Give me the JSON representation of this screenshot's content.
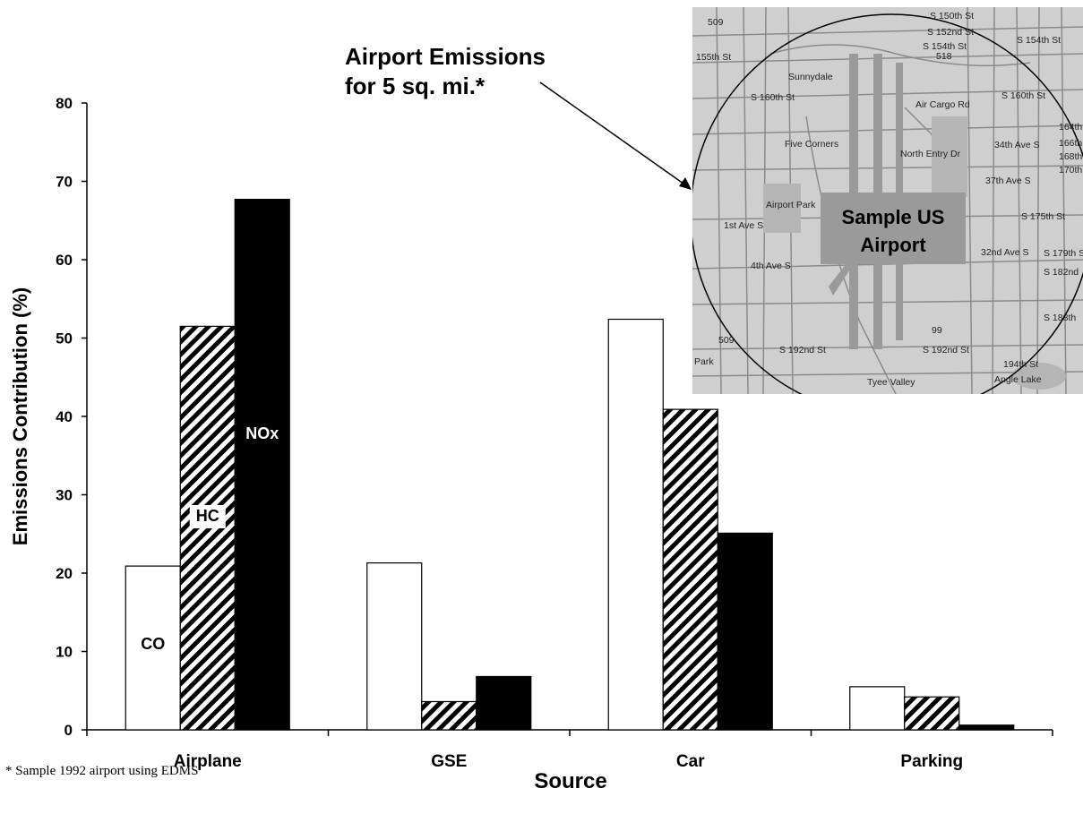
{
  "chart_data": {
    "type": "bar",
    "title": "",
    "xlabel": "Source",
    "ylabel": "Emissions Contribution (%)",
    "ylim": [
      0,
      80
    ],
    "yticks": [
      0,
      10,
      20,
      30,
      40,
      50,
      60,
      70,
      80
    ],
    "categories": [
      "Airplane",
      "GSE",
      "Car",
      "Parking"
    ],
    "series": [
      {
        "name": "CO",
        "values": [
          20.9,
          21.3,
          52.4,
          5.5
        ]
      },
      {
        "name": "HC",
        "values": [
          51.5,
          3.6,
          40.9,
          4.2
        ]
      },
      {
        "name": "NOx",
        "values": [
          67.7,
          6.8,
          25.1,
          0.6
        ]
      }
    ],
    "series_fills": [
      "white",
      "diagonal-hatch",
      "black"
    ],
    "grid": false,
    "legend": "inline labels on Airplane bars"
  },
  "annotation": {
    "line1": "Airport Emissions",
    "line2": "for 5 sq. mi.*"
  },
  "map_inset": {
    "box_line1": "Sample US",
    "box_line2": "Airport",
    "labels": [
      "S 150th St",
      "S 152nd St",
      "S 154th St",
      "155th St",
      "S 154th St",
      "518",
      "509",
      "Sunnydale",
      "S 160th St",
      "S 160th St",
      "Five Corners",
      "Air Cargo Rd",
      "North Entry Dr",
      "Airport Park",
      "1st Ave S",
      "4th Ave S",
      "S 175th St",
      "S 179th St",
      "S 182nd",
      "S 188th",
      "S 192nd St",
      "S 192nd St",
      "194th St",
      "Park",
      "Tyee Valley",
      "Angle Lake",
      "99",
      "509",
      "164th",
      "166th",
      "168th",
      "170th",
      "34th Ave S",
      "37th Ave S",
      "32nd Ave S"
    ]
  },
  "footnote": "* Sample 1992 airport using EDMS"
}
